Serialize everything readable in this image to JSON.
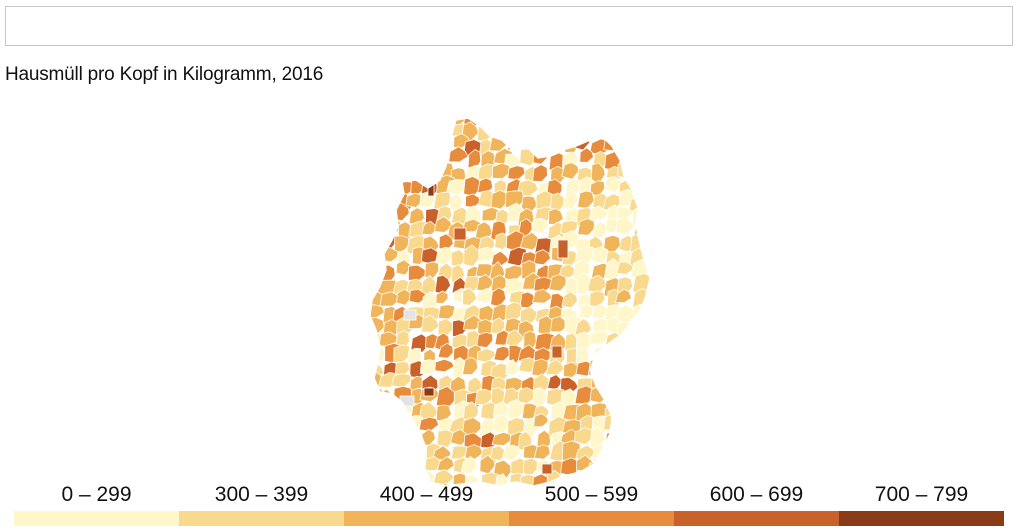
{
  "search": {
    "placeholder": "",
    "value": ""
  },
  "title": "Hausmüll pro Kopf in Kilogramm, 2016",
  "map": {
    "region": "Germany districts",
    "missing_color": "#e3e3e3",
    "border_color": "#ffffff"
  },
  "legend": [
    {
      "label": "0 – 299",
      "color": "#fff7c9"
    },
    {
      "label": "300 – 399",
      "color": "#f9d98e"
    },
    {
      "label": "400 – 499",
      "color": "#f0b45a"
    },
    {
      "label": "500 – 599",
      "color": "#e68c3c"
    },
    {
      "label": "600 – 699",
      "color": "#c8622a"
    },
    {
      "label": "700 – 799",
      "color": "#8a3a16"
    }
  ]
}
